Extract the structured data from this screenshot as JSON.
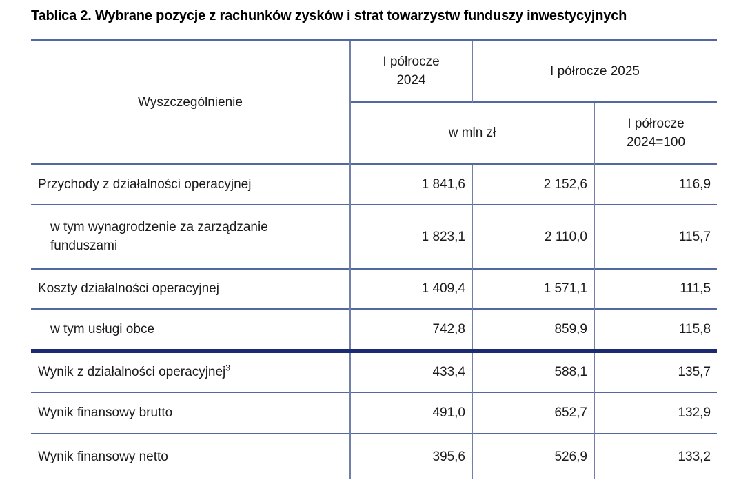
{
  "title": "Tablica 2. Wybrane pozycje z rachunków zysków i strat towarzystw funduszy inwestycyjnych",
  "table": {
    "header": {
      "specification": "Wyszczególnienie",
      "period_2024": "I półrocze\n2024",
      "period_2025": "I półrocze 2025",
      "unit": "w mln zł",
      "index_base": "I półrocze\n2024=100"
    },
    "rows": [
      {
        "label": "Przychody z działalności operacyjnej",
        "value_2024": "1 841,6",
        "value_2025": "2 152,6",
        "index": "116,9"
      },
      {
        "label": "w tym wynagrodzenie za zarządzanie\nfunduszami",
        "value_2024": "1 823,1",
        "value_2025": "2 110,0",
        "index": "115,7"
      },
      {
        "label": "Koszty działalności operacyjnej",
        "value_2024": "1 409,4",
        "value_2025": "1 571,1",
        "index": "111,5"
      },
      {
        "label": "w tym usługi obce",
        "value_2024": "742,8",
        "value_2025": "859,9",
        "index": "115,8"
      },
      {
        "label": "Wynik z działalności operacyjnej",
        "footnote_ref": "3",
        "value_2024": "433,4",
        "value_2025": "588,1",
        "index": "135,7"
      },
      {
        "label": "Wynik finansowy brutto",
        "value_2024": "491,0",
        "value_2025": "652,7",
        "index": "132,9"
      },
      {
        "label": "Wynik finansowy netto",
        "value_2024": "395,6",
        "value_2025": "526,9",
        "index": "133,2"
      }
    ]
  },
  "colors": {
    "border_horizontal": "#5468a0",
    "border_vertical": "#7080a8",
    "divider_dark_navy": "#1c2a72",
    "text": "#1a1a1a"
  }
}
